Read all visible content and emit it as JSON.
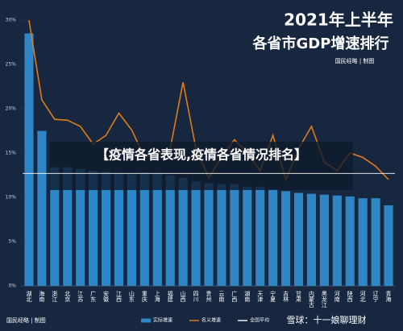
{
  "chart_data": {
    "type": "bar",
    "title": "2021年上半年",
    "subtitle": "各省市GDP增速排行",
    "source": "国民经略 | 制图",
    "footer": "国民经略 | 制图",
    "categories": [
      "湖北",
      "海南",
      "浙江",
      "北京",
      "江苏",
      "广东",
      "安徽",
      "江西",
      "山东",
      "重庆",
      "上海",
      "福建",
      "山西",
      "四川",
      "贵州",
      "云南",
      "广西",
      "湖南",
      "天津",
      "宁夏",
      "吉林",
      "甘肃",
      "内蒙古",
      "黑龙江",
      "河南",
      "陕西",
      "河北",
      "辽宁",
      "青海"
    ],
    "series": [
      {
        "name": "实际增速",
        "color": "#2f86c6",
        "type": "bar",
        "values": [
          28.5,
          17.5,
          13.4,
          13.4,
          13.2,
          13.0,
          12.9,
          12.7,
          12.6,
          12.8,
          12.7,
          12.5,
          12.2,
          11.8,
          11.6,
          11.5,
          11.5,
          11.2,
          11.2,
          10.9,
          10.7,
          10.5,
          10.4,
          10.3,
          10.2,
          10.1,
          9.9,
          9.9,
          9.1
        ]
      },
      {
        "name": "名义增速",
        "color": "#e07b1a",
        "type": "line",
        "values": [
          30,
          21,
          18.8,
          18.7,
          18,
          16,
          17,
          19.5,
          17.6,
          14.5,
          15,
          15.5,
          23,
          15.5,
          12.2,
          14.5,
          16.5,
          15,
          13,
          17,
          12,
          15.5,
          18,
          14,
          13,
          15,
          14.5,
          13.5,
          12
        ]
      }
    ],
    "reference_line": {
      "name": "全国平均",
      "value": 12.7,
      "color": "#ffffff"
    },
    "ylim": [
      0,
      30
    ],
    "yticks": [
      {
        "value": 0,
        "label": "0%"
      },
      {
        "value": 5,
        "label": "5%"
      },
      {
        "value": 10,
        "label": "10%"
      },
      {
        "value": 15,
        "label": "15%"
      },
      {
        "value": 20,
        "label": "20%"
      },
      {
        "value": 25,
        "label": "25%"
      },
      {
        "value": 30,
        "label": "30%"
      }
    ]
  },
  "overlay": "【疫情各省表现,疫情各省情况排名】",
  "watermark": "雪球：十一娘聊理财"
}
